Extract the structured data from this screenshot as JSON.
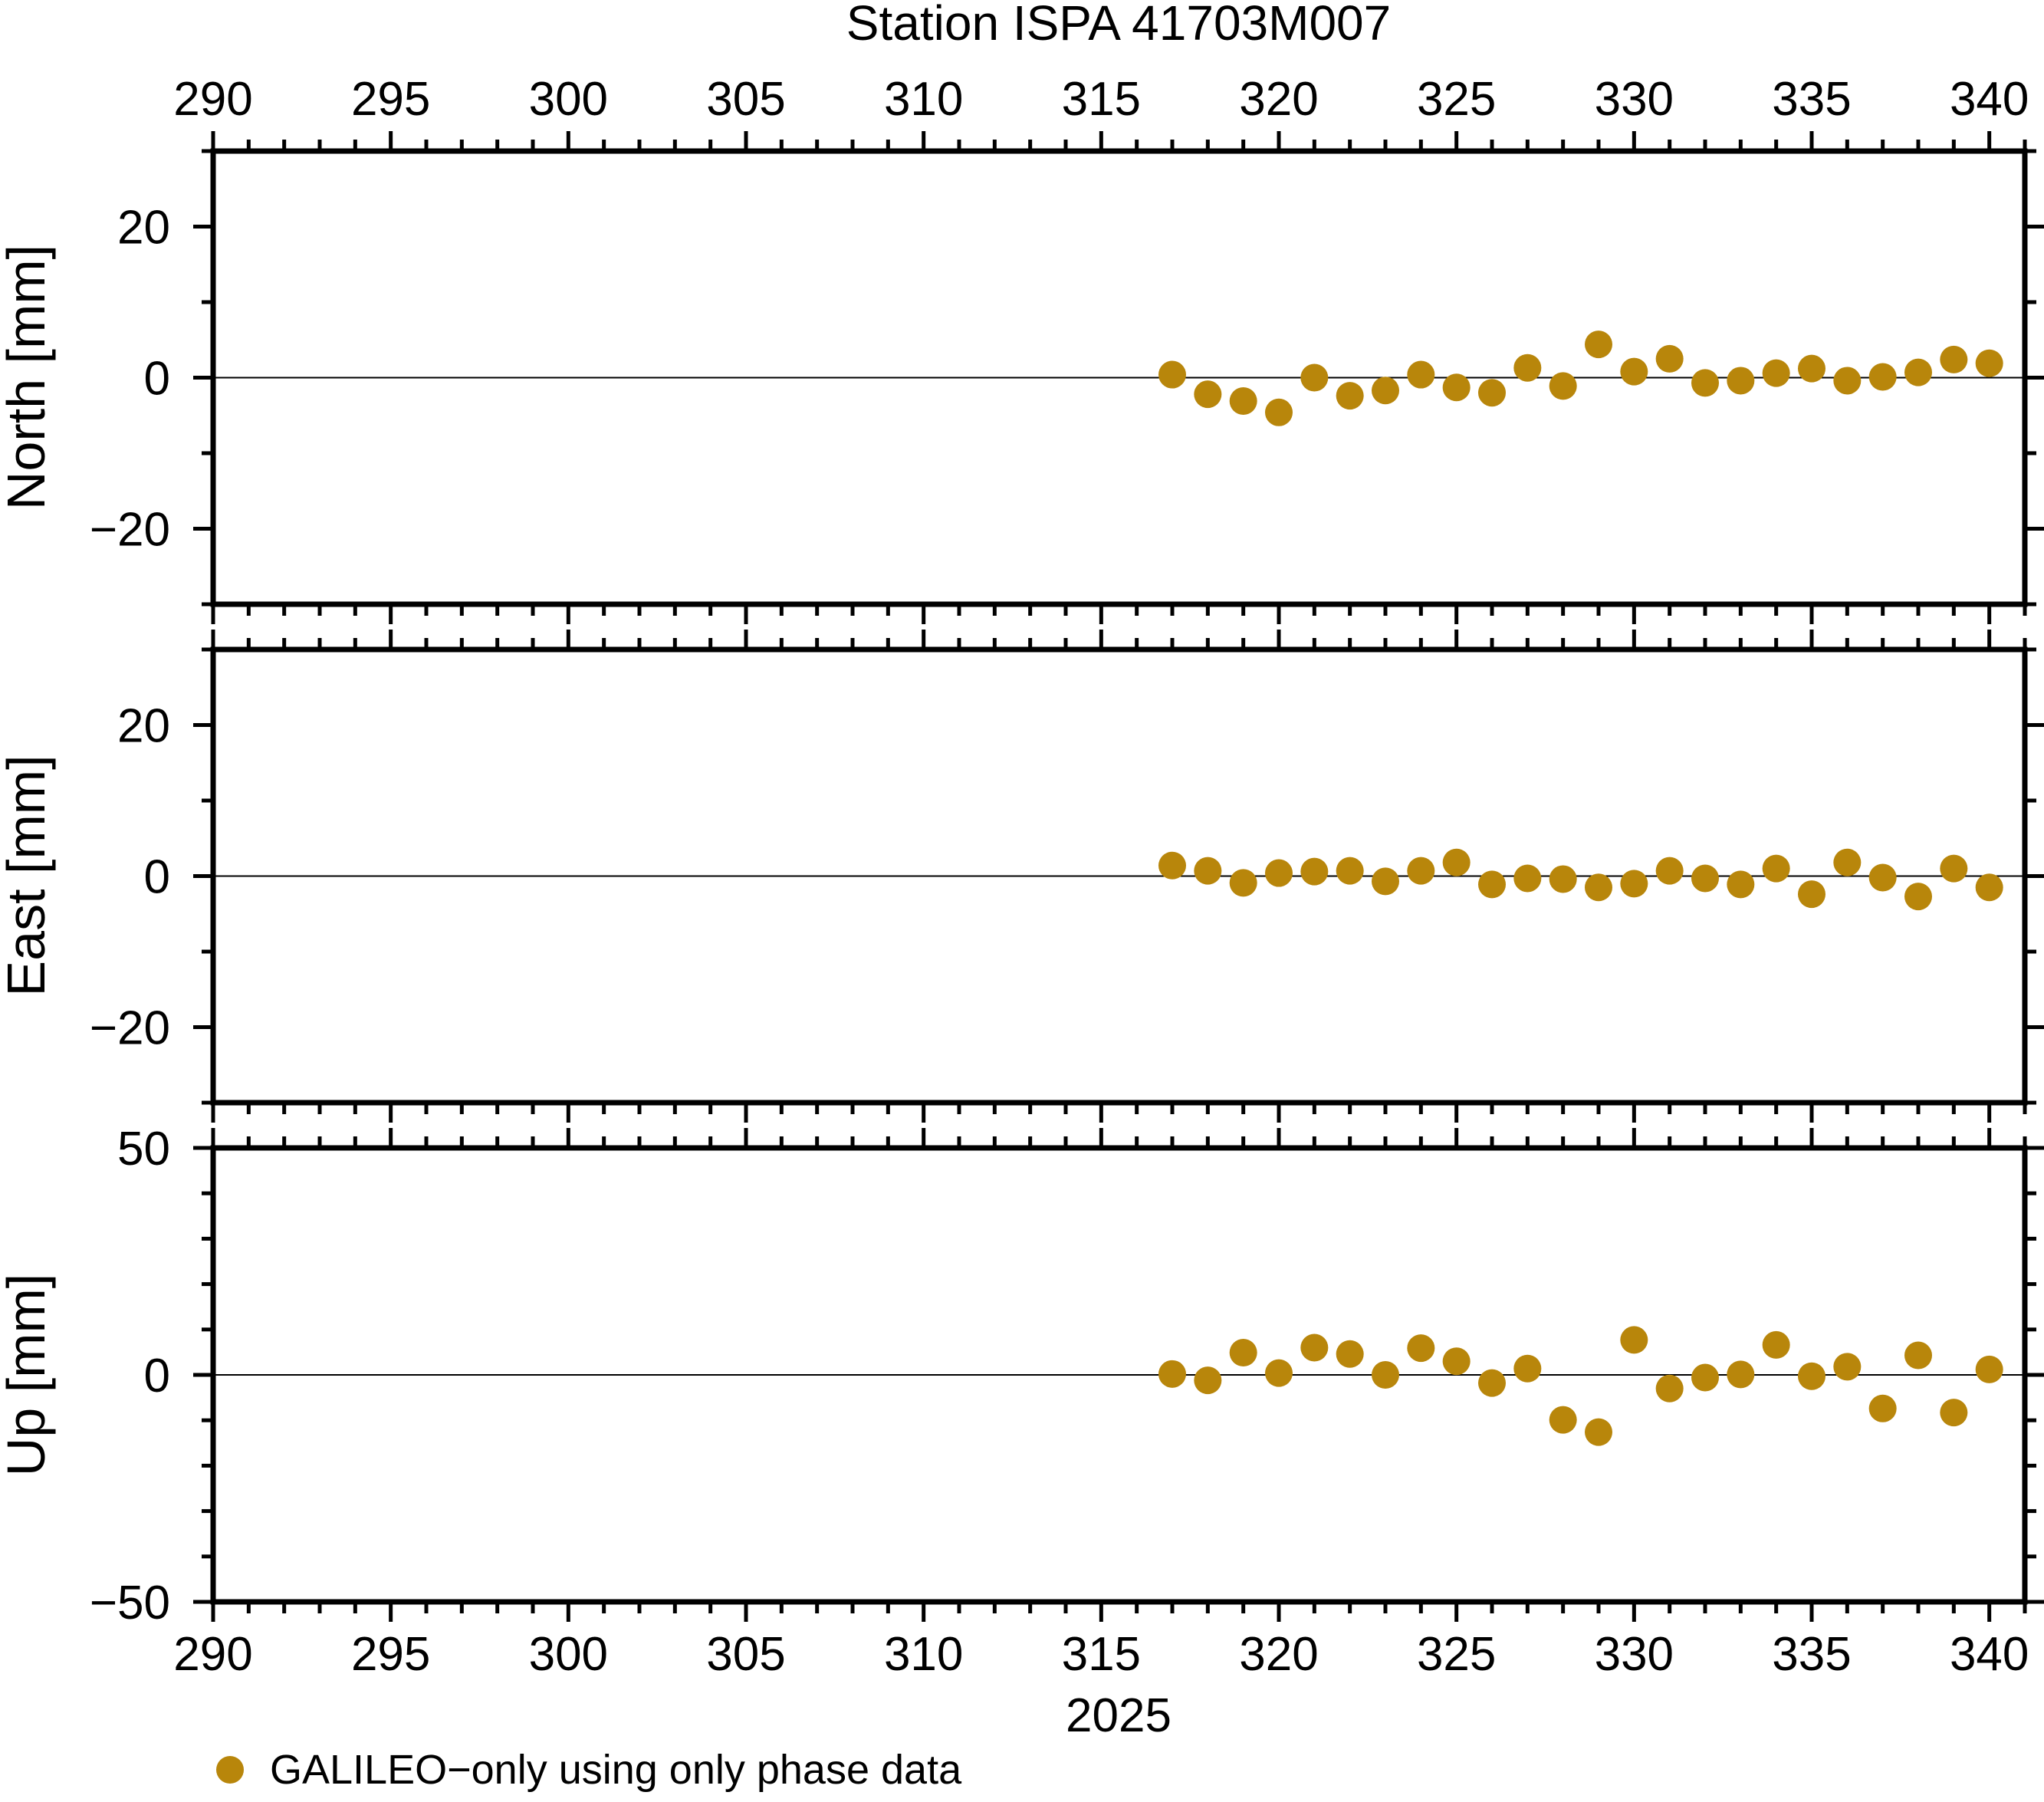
{
  "title": "Station ISPA 41703M007",
  "xlabel": "2025",
  "legend": {
    "label": "GALILEO−only using only phase data",
    "marker_color": "#B8860B"
  },
  "chart_data": {
    "type": "scatter",
    "title": "Station ISPA 41703M007",
    "xlabel": "2025",
    "legend_position": "bottom-left",
    "grid": "zero-line-only",
    "marker": {
      "shape": "circle",
      "color": "#B8860B",
      "radius_px": 18
    },
    "x_axis": {
      "label": "2025",
      "units": "day of year",
      "range": [
        290,
        341
      ],
      "major_ticks": [
        290,
        295,
        300,
        305,
        310,
        315,
        320,
        325,
        330,
        335,
        340
      ],
      "minor_step": 1
    },
    "x": [
      317,
      318,
      319,
      320,
      321,
      322,
      323,
      324,
      325,
      326,
      327,
      328,
      329,
      330,
      331,
      332,
      333,
      334,
      335,
      336,
      337,
      338,
      339,
      340
    ],
    "panels": [
      {
        "name": "North",
        "ylabel": "North [mm]",
        "range": [
          -30,
          30
        ],
        "major_ticks": [
          20,
          0,
          -20
        ],
        "minor_step": 10,
        "values": [
          0.4,
          -2.2,
          -3.1,
          -4.6,
          0.0,
          -2.4,
          -1.7,
          0.4,
          -1.3,
          -2.0,
          1.3,
          -1.1,
          4.4,
          0.8,
          2.5,
          -0.7,
          -0.4,
          0.6,
          1.2,
          -0.4,
          0.1,
          0.7,
          2.4,
          1.9
        ]
      },
      {
        "name": "East",
        "ylabel": "East [mm]",
        "range": [
          -30,
          30
        ],
        "major_ticks": [
          20,
          0,
          -20
        ],
        "minor_step": 10,
        "values": [
          1.4,
          0.7,
          -0.9,
          0.4,
          0.6,
          0.7,
          -0.7,
          0.7,
          1.8,
          -1.1,
          -0.3,
          -0.4,
          -1.5,
          -1.0,
          0.7,
          -0.3,
          -1.1,
          1.0,
          -2.4,
          1.8,
          -0.2,
          -2.7,
          1.0,
          -1.5
        ]
      },
      {
        "name": "Up",
        "ylabel": "Up [mm]",
        "range": [
          -50,
          50
        ],
        "major_ticks": [
          50,
          0,
          -50
        ],
        "minor_step": 10,
        "values": [
          0.2,
          -1.2,
          4.9,
          0.4,
          6.0,
          4.6,
          0.0,
          5.9,
          3.0,
          -1.8,
          1.4,
          -9.9,
          -12.6,
          7.7,
          -3.0,
          -0.6,
          0.1,
          6.6,
          -0.3,
          1.8,
          -7.4,
          4.3,
          -8.3,
          1.2
        ]
      }
    ]
  }
}
